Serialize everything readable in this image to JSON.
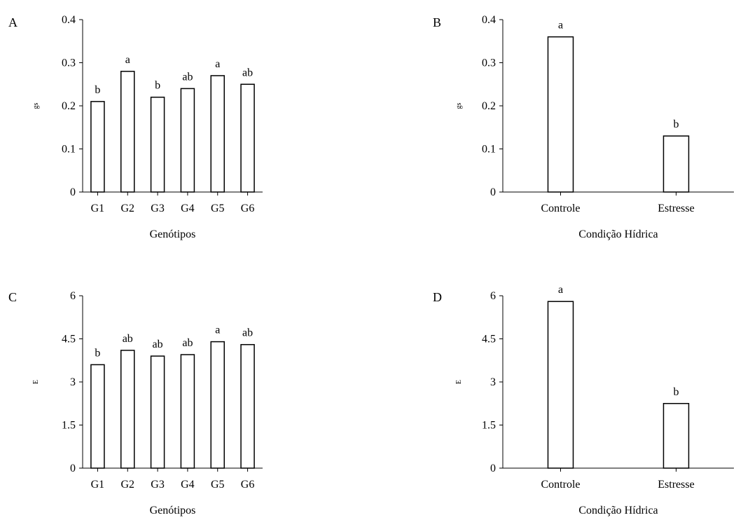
{
  "chart_data": [
    {
      "panel": "A",
      "type": "bar",
      "categories": [
        "G1",
        "G2",
        "G3",
        "G4",
        "G5",
        "G6"
      ],
      "values": [
        0.21,
        0.28,
        0.22,
        0.24,
        0.27,
        0.25
      ],
      "significance": [
        "b",
        "a",
        "b",
        "ab",
        "a",
        "ab"
      ],
      "xlabel": "Genótipos",
      "ylabel": "gs",
      "ylim": [
        0,
        0.4
      ],
      "yticks": [
        "0",
        "0.1",
        "0.2",
        "0.3",
        "0.4"
      ],
      "bar_fill": "#ffffff",
      "bar_stroke": "#000000"
    },
    {
      "panel": "B",
      "type": "bar",
      "categories": [
        "Controle",
        "Estresse"
      ],
      "values": [
        0.36,
        0.13
      ],
      "significance": [
        "a",
        "b"
      ],
      "xlabel": "Condição Hídrica",
      "ylabel": "gs",
      "ylim": [
        0,
        0.4
      ],
      "yticks": [
        "0",
        "0.1",
        "0.2",
        "0.3",
        "0.4"
      ],
      "bar_fill": "#ffffff",
      "bar_stroke": "#000000"
    },
    {
      "panel": "C",
      "type": "bar",
      "categories": [
        "G1",
        "G2",
        "G3",
        "G4",
        "G5",
        "G6"
      ],
      "values": [
        3.6,
        4.1,
        3.9,
        3.95,
        4.4,
        4.3
      ],
      "significance": [
        "b",
        "ab",
        "ab",
        "ab",
        "a",
        "ab"
      ],
      "xlabel": "Genótipos",
      "ylabel": "E",
      "ylim": [
        0,
        6
      ],
      "yticks": [
        "0",
        "1.5",
        "3",
        "4.5",
        "6"
      ],
      "bar_fill": "#ffffff",
      "bar_stroke": "#000000"
    },
    {
      "panel": "D",
      "type": "bar",
      "categories": [
        "Controle",
        "Estresse"
      ],
      "values": [
        5.8,
        2.25
      ],
      "significance": [
        "a",
        "b"
      ],
      "xlabel": "Condição Hídrica",
      "ylabel": "E",
      "ylim": [
        0,
        6
      ],
      "yticks": [
        "0",
        "1.5",
        "3",
        "4.5",
        "6"
      ],
      "bar_fill": "#ffffff",
      "bar_stroke": "#000000"
    }
  ]
}
